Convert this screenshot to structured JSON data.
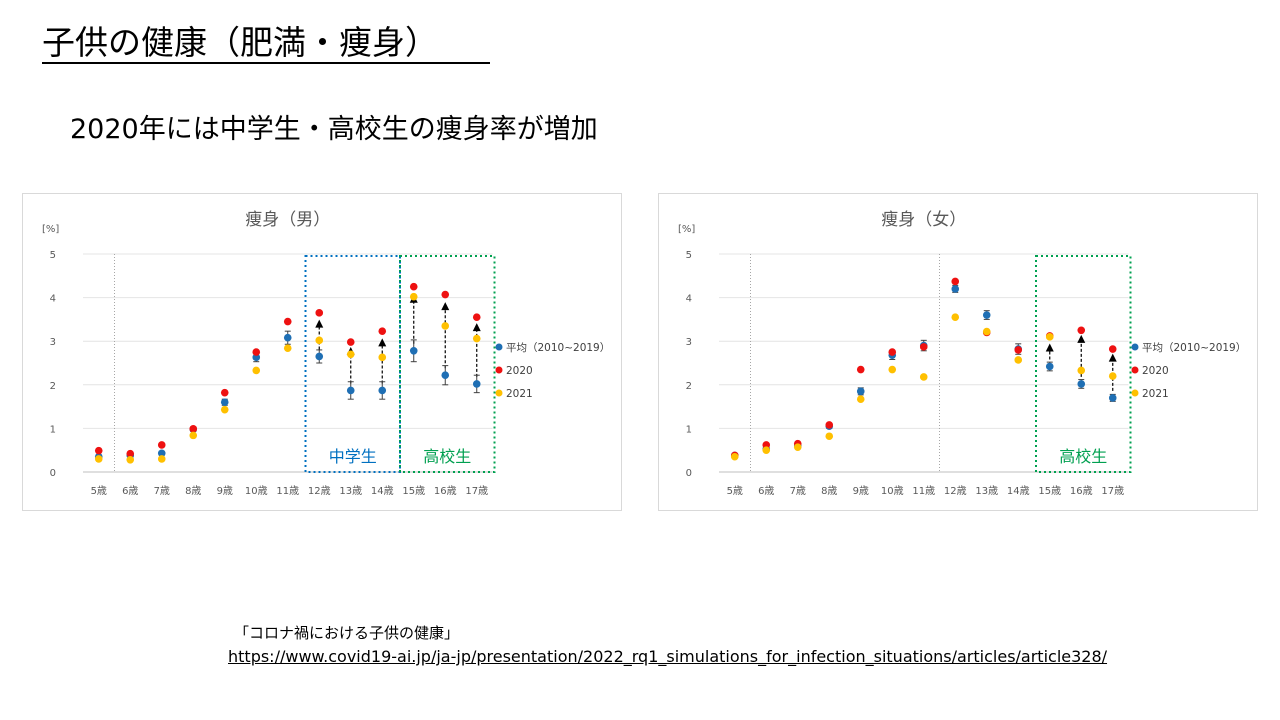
{
  "slide": {
    "title": "子供の健康（肥満・痩身）",
    "subtitle": "2020年には中学生・高校生の痩身率が増加",
    "source_label": "「コロナ禍における子供の健康」",
    "source_url": "https://www.covid19-ai.jp/ja-jp/presentation/2022_rq1_simulations_for_infection_situations/articles/article328/"
  },
  "colors": {
    "average": "#1f6fb4",
    "y2020": "#ee1111",
    "y2021": "#ffc000",
    "middle_school_box": "#0070c0",
    "high_school_box": "#00a050",
    "axis_text": "#595959",
    "title_text": "#595959"
  },
  "chart_data": [
    {
      "type": "scatter",
      "title": "痩身（男）",
      "unit_label": "[%]",
      "categories": [
        "5歳",
        "6歳",
        "7歳",
        "8歳",
        "9歳",
        "10歳",
        "11歳",
        "12歳",
        "13歳",
        "14歳",
        "15歳",
        "16歳",
        "17歳"
      ],
      "ylim": [
        0,
        5
      ],
      "yticks": [
        "0",
        "1",
        "2",
        "3",
        "4",
        "5"
      ],
      "grid": "horizontal",
      "legend_position": "right",
      "series": [
        {
          "name": "平均（2010~2019）",
          "color_key": "average",
          "values": [
            0.35,
            0.38,
            0.43,
            0.98,
            1.6,
            2.63,
            3.08,
            2.65,
            1.87,
            1.87,
            2.78,
            2.22,
            2.02
          ],
          "errors": [
            0.03,
            0.03,
            0.04,
            0.05,
            0.07,
            0.1,
            0.15,
            0.15,
            0.2,
            0.2,
            0.25,
            0.22,
            0.2
          ]
        },
        {
          "name": "2020",
          "color_key": "y2020",
          "values": [
            0.49,
            0.42,
            0.62,
            0.99,
            1.82,
            2.75,
            3.45,
            3.65,
            2.98,
            3.23,
            4.25,
            4.07,
            3.55
          ]
        },
        {
          "name": "2021",
          "color_key": "y2021",
          "values": [
            0.3,
            0.28,
            0.3,
            0.84,
            1.43,
            2.33,
            2.84,
            3.02,
            2.7,
            2.63,
            4.02,
            3.35,
            3.06
          ]
        }
      ],
      "arrows": [
        {
          "category": "12歳",
          "from": 2.65,
          "to": 3.45
        },
        {
          "category": "13歳",
          "from": 1.87,
          "to": 2.82
        },
        {
          "category": "14歳",
          "from": 1.87,
          "to": 3.02
        },
        {
          "category": "15歳",
          "from": 2.78,
          "to": 4.02
        },
        {
          "category": "16歳",
          "from": 2.22,
          "to": 3.85
        },
        {
          "category": "17歳",
          "from": 2.02,
          "to": 3.37
        }
      ],
      "regions": [
        {
          "label": "中学生",
          "from": "12歳",
          "to": "14歳",
          "color_key": "middle_school_box"
        },
        {
          "label": "高校生",
          "from": "15歳",
          "to": "17歳",
          "color_key": "high_school_box"
        }
      ],
      "dividers": [
        {
          "after": "5歳",
          "color_key": "axis_text"
        }
      ]
    },
    {
      "type": "scatter",
      "title": "痩身（女）",
      "unit_label": "[%]",
      "categories": [
        "5歳",
        "6歳",
        "7歳",
        "8歳",
        "9歳",
        "10歳",
        "11歳",
        "12歳",
        "13歳",
        "14歳",
        "15歳",
        "16歳",
        "17歳"
      ],
      "ylim": [
        0,
        5
      ],
      "yticks": [
        "0",
        "1",
        "2",
        "3",
        "4",
        "5"
      ],
      "grid": "horizontal",
      "legend_position": "right",
      "series": [
        {
          "name": "平均（2010~2019）",
          "color_key": "average",
          "values": [
            0.38,
            0.53,
            0.6,
            1.05,
            1.85,
            2.68,
            2.9,
            4.2,
            3.6,
            2.82,
            2.42,
            2.02,
            1.7
          ],
          "errors": [
            0.03,
            0.04,
            0.04,
            0.05,
            0.08,
            0.1,
            0.12,
            0.08,
            0.1,
            0.12,
            0.1,
            0.1,
            0.08
          ]
        },
        {
          "name": "2020",
          "color_key": "y2020",
          "values": [
            0.38,
            0.62,
            0.65,
            1.08,
            2.35,
            2.75,
            2.87,
            4.37,
            3.2,
            2.8,
            3.12,
            3.25,
            2.82
          ]
        },
        {
          "name": "2021",
          "color_key": "y2021",
          "values": [
            0.35,
            0.5,
            0.57,
            0.82,
            1.67,
            2.35,
            2.18,
            3.55,
            3.22,
            2.57,
            3.1,
            2.33,
            2.2
          ]
        }
      ],
      "arrows": [
        {
          "category": "15歳",
          "from": 2.42,
          "to": 2.9
        },
        {
          "category": "16歳",
          "from": 2.02,
          "to": 3.1
        },
        {
          "category": "17歳",
          "from": 1.7,
          "to": 2.67
        }
      ],
      "regions": [
        {
          "label": "高校生",
          "from": "15歳",
          "to": "17歳",
          "color_key": "high_school_box"
        }
      ],
      "dividers": [
        {
          "after": "5歳",
          "color_key": "axis_text"
        },
        {
          "after": "11歳",
          "color_key": "axis_text"
        }
      ]
    }
  ]
}
